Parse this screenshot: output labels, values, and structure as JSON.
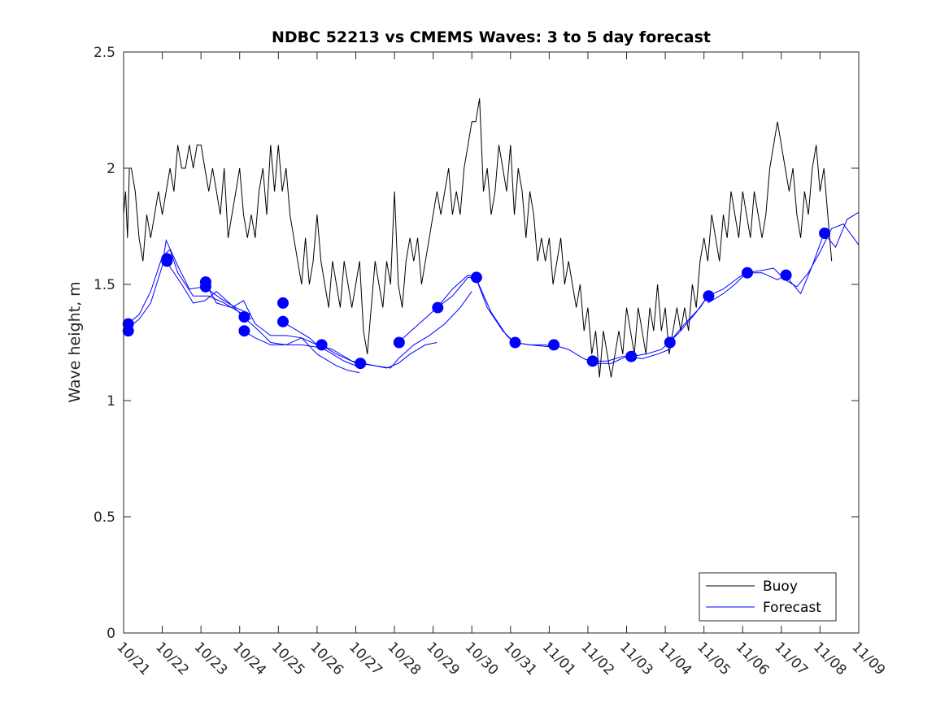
{
  "chart_data": {
    "type": "line",
    "title": "NDBC 52213 vs CMEMS Waves: 3 to 5 day forecast",
    "xlabel": "",
    "ylabel": "Wave height, m",
    "ylim": [
      0,
      2.5
    ],
    "xlim": [
      0,
      19
    ],
    "x_tick_labels": [
      "10/21",
      "10/22",
      "10/23",
      "10/24",
      "10/25",
      "10/26",
      "10/27",
      "10/28",
      "10/29",
      "10/30",
      "10/31",
      "11/01",
      "11/02",
      "11/03",
      "11/04",
      "11/05",
      "11/06",
      "11/07",
      "11/08",
      "11/09"
    ],
    "y_ticks": [
      0,
      0.5,
      1,
      1.5,
      2,
      2.5
    ],
    "y_tick_labels": [
      "0",
      "0.5",
      "1",
      "1.5",
      "2",
      "2.5"
    ],
    "legend": {
      "placement": "bottom-right",
      "entries": [
        "Buoy",
        "Forecast"
      ]
    },
    "colors": {
      "buoy": "#000000",
      "forecast": "#0000ff",
      "markers": "#0000ff"
    },
    "series": [
      {
        "name": "Buoy",
        "x": [
          0,
          0.05,
          0.1,
          0.15,
          0.2,
          0.3,
          0.4,
          0.5,
          0.6,
          0.7,
          0.8,
          0.9,
          1.0,
          1.1,
          1.2,
          1.3,
          1.4,
          1.5,
          1.6,
          1.7,
          1.8,
          1.9,
          2.0,
          2.1,
          2.2,
          2.3,
          2.4,
          2.5,
          2.6,
          2.7,
          2.8,
          2.9,
          3.0,
          3.1,
          3.2,
          3.3,
          3.4,
          3.5,
          3.6,
          3.7,
          3.8,
          3.9,
          4.0,
          4.1,
          4.2,
          4.3,
          4.4,
          4.5,
          4.6,
          4.7,
          4.8,
          4.9,
          5.0,
          5.1,
          5.2,
          5.3,
          5.4,
          5.5,
          5.6,
          5.7,
          5.8,
          5.9,
          6.0,
          6.1,
          6.2,
          6.3,
          6.4,
          6.5,
          6.6,
          6.7,
          6.8,
          6.9,
          7.0,
          7.1,
          7.2,
          7.3,
          7.4,
          7.5,
          7.6,
          7.7,
          7.8,
          7.9,
          8.0,
          8.1,
          8.2,
          8.3,
          8.4,
          8.5,
          8.6,
          8.7,
          8.8,
          8.9,
          9.0,
          9.1,
          9.2,
          9.3,
          9.4,
          9.5,
          9.6,
          9.7,
          9.8,
          9.9,
          10.0,
          10.1,
          10.2,
          10.3,
          10.4,
          10.5,
          10.6,
          10.7,
          10.8,
          10.9,
          11.0,
          11.1,
          11.2,
          11.3,
          11.4,
          11.5,
          11.6,
          11.7,
          11.8,
          11.9,
          12.0,
          12.1,
          12.2,
          12.3,
          12.4,
          12.5,
          12.6,
          12.7,
          12.8,
          12.9,
          13.0,
          13.1,
          13.2,
          13.3,
          13.4,
          13.5,
          13.6,
          13.7,
          13.8,
          13.9,
          14.0,
          14.1,
          14.2,
          14.3,
          14.4,
          14.5,
          14.6,
          14.7,
          14.8,
          14.9,
          15.0,
          15.1,
          15.2,
          15.3,
          15.4,
          15.5,
          15.6,
          15.7,
          15.8,
          15.9,
          16.0,
          16.1,
          16.2,
          16.3,
          16.4,
          16.5,
          16.6,
          16.7,
          16.8,
          16.9,
          17.0,
          17.1,
          17.2,
          17.3,
          17.4,
          17.5,
          17.6,
          17.7,
          17.8,
          17.9,
          18.0,
          18.1,
          18.2,
          18.3
        ],
        "values": [
          1.8,
          1.9,
          1.7,
          2.0,
          2.0,
          1.9,
          1.7,
          1.6,
          1.8,
          1.7,
          1.8,
          1.9,
          1.8,
          1.9,
          2.0,
          1.9,
          2.1,
          2.0,
          2.0,
          2.1,
          2.0,
          2.1,
          2.1,
          2.0,
          1.9,
          2.0,
          1.9,
          1.8,
          2.0,
          1.7,
          1.8,
          1.9,
          2.0,
          1.8,
          1.7,
          1.8,
          1.7,
          1.9,
          2.0,
          1.8,
          2.1,
          1.9,
          2.1,
          1.9,
          2.0,
          1.8,
          1.7,
          1.6,
          1.5,
          1.7,
          1.5,
          1.6,
          1.8,
          1.6,
          1.5,
          1.4,
          1.6,
          1.5,
          1.4,
          1.6,
          1.5,
          1.4,
          1.5,
          1.6,
          1.3,
          1.2,
          1.4,
          1.6,
          1.5,
          1.4,
          1.6,
          1.5,
          1.9,
          1.5,
          1.4,
          1.6,
          1.7,
          1.6,
          1.7,
          1.5,
          1.6,
          1.7,
          1.8,
          1.9,
          1.8,
          1.9,
          2.0,
          1.8,
          1.9,
          1.8,
          2.0,
          2.1,
          2.2,
          2.2,
          2.3,
          1.9,
          2.0,
          1.8,
          1.9,
          2.1,
          2.0,
          1.9,
          2.1,
          1.8,
          2.0,
          1.9,
          1.7,
          1.9,
          1.8,
          1.6,
          1.7,
          1.6,
          1.7,
          1.5,
          1.6,
          1.7,
          1.5,
          1.6,
          1.5,
          1.4,
          1.5,
          1.3,
          1.4,
          1.2,
          1.3,
          1.1,
          1.3,
          1.2,
          1.1,
          1.2,
          1.3,
          1.2,
          1.4,
          1.3,
          1.2,
          1.4,
          1.3,
          1.2,
          1.4,
          1.3,
          1.5,
          1.3,
          1.4,
          1.2,
          1.3,
          1.4,
          1.3,
          1.4,
          1.3,
          1.5,
          1.4,
          1.6,
          1.7,
          1.6,
          1.8,
          1.7,
          1.6,
          1.8,
          1.7,
          1.9,
          1.8,
          1.7,
          1.9,
          1.8,
          1.7,
          1.9,
          1.8,
          1.7,
          1.8,
          2.0,
          2.1,
          2.2,
          2.1,
          2.0,
          1.9,
          2.0,
          1.8,
          1.7,
          1.9,
          1.8,
          2.0,
          2.1,
          1.9,
          2.0,
          1.8,
          1.6
        ]
      },
      {
        "name": "Forecast",
        "segments": [
          {
            "x": [
              0.1,
              0.4,
              0.7,
              1.0,
              1.2,
              1.4,
              1.8,
              2.2,
              2.6,
              3.0,
              3.3
            ],
            "values": [
              1.33,
              1.37,
              1.47,
              1.62,
              1.65,
              1.55,
              1.45,
              1.45,
              1.42,
              1.38,
              1.35
            ]
          },
          {
            "x": [
              0.1,
              0.4,
              0.7,
              1.0,
              1.1,
              1.4,
              1.7,
              2.1,
              2.5,
              2.9,
              3.3
            ],
            "values": [
              1.31,
              1.35,
              1.42,
              1.58,
              1.69,
              1.58,
              1.48,
              1.49,
              1.44,
              1.4,
              1.37
            ]
          },
          {
            "x": [
              1.1,
              1.5,
              1.8,
              2.1,
              2.4,
              2.8,
              3.1,
              3.5,
              3.8,
              4.2,
              4.6,
              5.0
            ],
            "values": [
              1.6,
              1.5,
              1.42,
              1.43,
              1.47,
              1.41,
              1.36,
              1.3,
              1.25,
              1.24,
              1.24,
              1.23
            ]
          },
          {
            "x": [
              2.1,
              2.4,
              2.8,
              3.1,
              3.4,
              3.8,
              4.2,
              4.6,
              5.0,
              5.4,
              5.7,
              6.0
            ],
            "values": [
              1.51,
              1.42,
              1.4,
              1.43,
              1.33,
              1.28,
              1.28,
              1.27,
              1.24,
              1.2,
              1.17,
              1.15
            ]
          },
          {
            "x": [
              3.1,
              3.4,
              3.8,
              4.2,
              4.6,
              5.0,
              5.5,
              5.8,
              6.1
            ],
            "values": [
              1.3,
              1.27,
              1.24,
              1.24,
              1.27,
              1.2,
              1.15,
              1.13,
              1.12
            ]
          },
          {
            "x": [
              4.1,
              4.4,
              4.8,
              5.0,
              5.4,
              5.8,
              6.0
            ],
            "values": [
              1.34,
              1.31,
              1.27,
              1.24,
              1.22,
              1.18,
              1.16
            ]
          },
          {
            "x": [
              5.1,
              5.5,
              5.9,
              6.2,
              6.5,
              6.8,
              7.1,
              7.4,
              7.8,
              8.1
            ],
            "values": [
              1.24,
              1.2,
              1.17,
              1.16,
              1.15,
              1.14,
              1.16,
              1.2,
              1.24,
              1.25
            ]
          },
          {
            "x": [
              6.1,
              6.5,
              6.9,
              7.1,
              7.5,
              7.9,
              8.3,
              8.7,
              9.0
            ],
            "values": [
              1.16,
              1.15,
              1.14,
              1.18,
              1.24,
              1.28,
              1.33,
              1.4,
              1.47
            ]
          },
          {
            "x": [
              7.1,
              7.5,
              7.9,
              8.1,
              8.5,
              8.9,
              9.1,
              9.4,
              9.8,
              10.1,
              10.5,
              11.1
            ],
            "values": [
              1.25,
              1.31,
              1.37,
              1.4,
              1.48,
              1.54,
              1.53,
              1.4,
              1.3,
              1.25,
              1.24,
              1.23
            ]
          },
          {
            "x": [
              8.1,
              8.5,
              8.9,
              9.1,
              9.5,
              9.9,
              10.1,
              10.5,
              10.9,
              11.1
            ],
            "values": [
              1.4,
              1.45,
              1.53,
              1.53,
              1.38,
              1.28,
              1.25,
              1.24,
              1.24,
              1.23
            ]
          },
          {
            "x": [
              11.1,
              11.5,
              11.9,
              12.2,
              12.6,
              13.0,
              13.4,
              13.8,
              14.1
            ],
            "values": [
              1.24,
              1.22,
              1.18,
              1.16,
              1.16,
              1.19,
              1.18,
              1.2,
              1.22
            ]
          },
          {
            "x": [
              12.1,
              12.5,
              12.9,
              13.1,
              13.5,
              13.9,
              14.1,
              14.5,
              14.9,
              15.1
            ],
            "values": [
              1.17,
              1.17,
              1.19,
              1.19,
              1.2,
              1.22,
              1.25,
              1.33,
              1.4,
              1.45
            ]
          },
          {
            "x": [
              14.1,
              14.4,
              14.8,
              15.1,
              15.5,
              15.9,
              16.1,
              16.5,
              16.9,
              17.1,
              17.5,
              17.8,
              18.1,
              18.4,
              18.7,
              19.0
            ],
            "values": [
              1.25,
              1.3,
              1.38,
              1.45,
              1.48,
              1.53,
              1.55,
              1.55,
              1.52,
              1.54,
              1.46,
              1.58,
              1.72,
              1.66,
              1.78,
              1.81
            ]
          },
          {
            "x": [
              15.1,
              15.5,
              15.8,
              16.1,
              16.5,
              16.8,
              17.1,
              17.4,
              17.7,
              18.0,
              18.3,
              18.6,
              19.0
            ],
            "values": [
              1.42,
              1.46,
              1.5,
              1.55,
              1.56,
              1.57,
              1.52,
              1.49,
              1.55,
              1.64,
              1.74,
              1.76,
              1.67
            ]
          }
        ]
      }
    ],
    "markers": {
      "x": [
        0.12,
        0.12,
        1.12,
        1.12,
        2.12,
        2.12,
        3.12,
        3.12,
        4.12,
        4.12,
        5.12,
        6.12,
        7.12,
        8.12,
        9.12,
        10.12,
        11.12,
        12.12,
        13.12,
        14.12,
        15.12,
        16.12,
        17.12,
        18.12
      ],
      "values": [
        1.33,
        1.3,
        1.61,
        1.6,
        1.51,
        1.49,
        1.36,
        1.3,
        1.42,
        1.34,
        1.24,
        1.16,
        1.25,
        1.4,
        1.53,
        1.25,
        1.24,
        1.17,
        1.19,
        1.25,
        1.45,
        1.55,
        1.54,
        1.72
      ]
    }
  }
}
